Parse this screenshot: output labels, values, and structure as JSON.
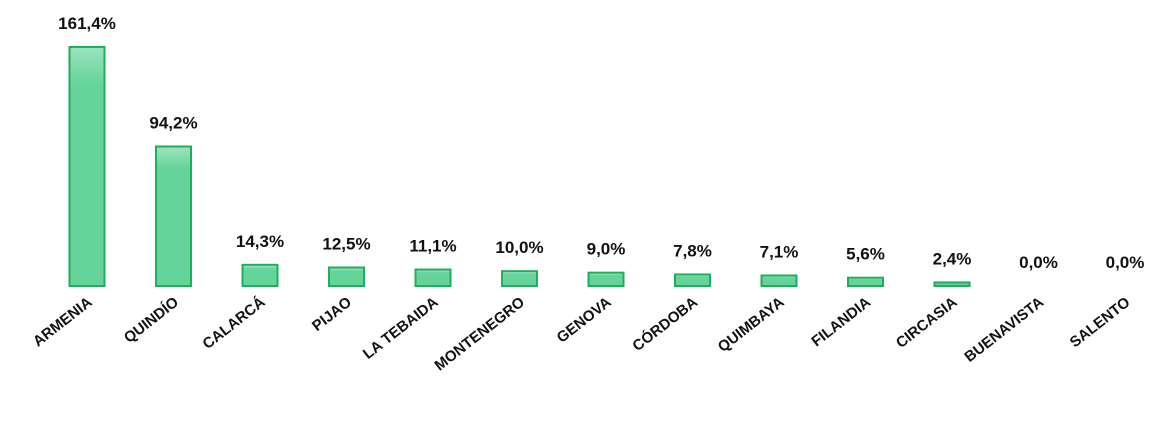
{
  "chart_data": {
    "type": "bar",
    "categories": [
      "ARMENIA",
      "QUINDÍO",
      "CALARCÁ",
      "PIJAO",
      "LA TEBAIDA",
      "MONTENEGRO",
      "GENOVA",
      "CÓRDOBA",
      "QUIMBAYA",
      "FILANDIA",
      "CIRCASIA",
      "BUENAVISTA",
      "SALENTO"
    ],
    "values": [
      161.4,
      94.2,
      14.3,
      12.5,
      11.1,
      10.0,
      9.0,
      7.8,
      7.1,
      5.6,
      2.4,
      0.0,
      0.0
    ],
    "value_labels": [
      "161,4%",
      "94,2%",
      "14,3%",
      "12,5%",
      "11,1%",
      "10,0%",
      "9,0%",
      "7,8%",
      "7,1%",
      "5,6%",
      "2,4%",
      "0,0%",
      "0,0%"
    ],
    "color": "#66d49a",
    "border_color": "#1fae5c"
  }
}
